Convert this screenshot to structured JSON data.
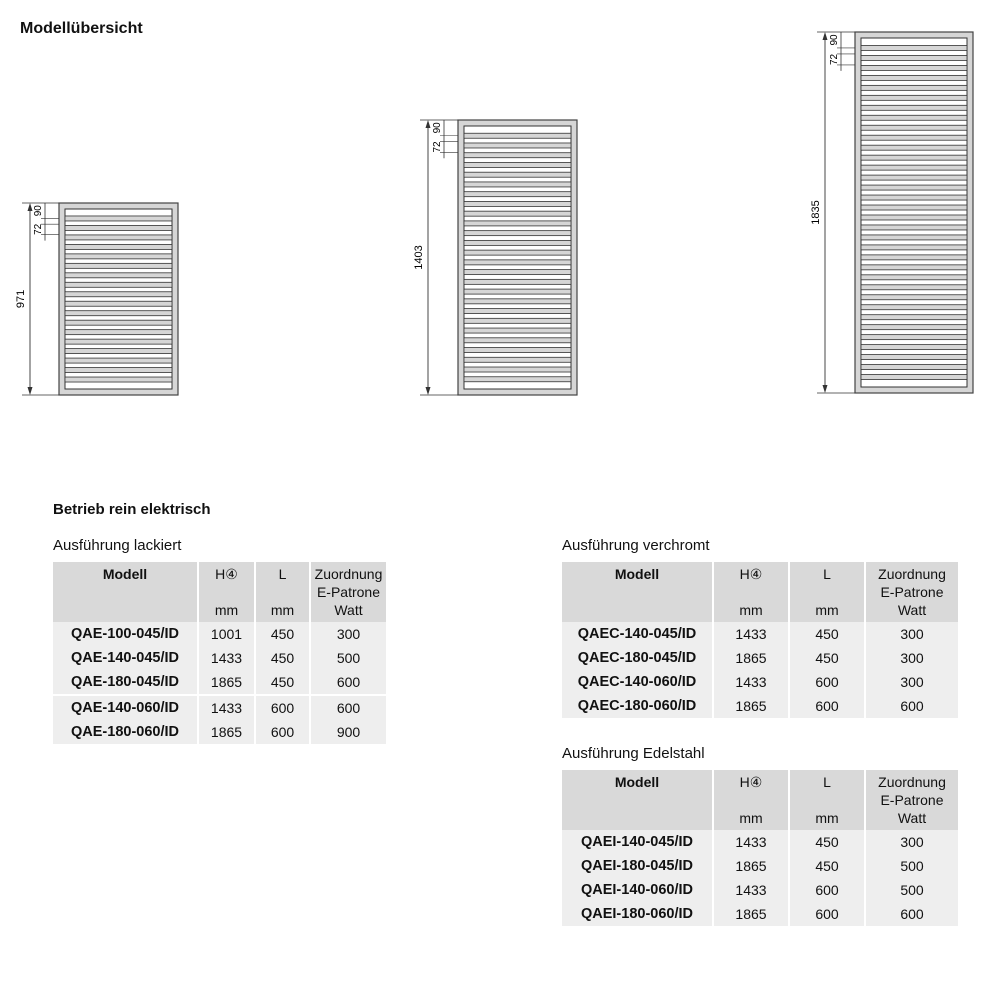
{
  "title": "Modellübersicht",
  "radiators": [
    {
      "height_label": "971",
      "top_label": "90",
      "pitch_label": "72",
      "bars": 19
    },
    {
      "height_label": "1403",
      "top_label": "90",
      "pitch_label": "72",
      "bars": 27
    },
    {
      "height_label": "1835",
      "top_label": "90",
      "pitch_label": "72",
      "bars": 35
    }
  ],
  "section": "Betrieb rein elektrisch",
  "headers": {
    "modell": "Modell",
    "h": "H④",
    "l": "L",
    "z1": "Zuordnung",
    "z2": "E-Patrone",
    "z3": "Watt",
    "mm": "mm"
  },
  "tables": [
    {
      "caption": "Ausführung lackiert",
      "rows": [
        [
          "QAE-100-045/ID",
          "1001",
          "450",
          "300"
        ],
        [
          "QAE-140-045/ID",
          "1433",
          "450",
          "500"
        ],
        [
          "QAE-180-045/ID",
          "1865",
          "450",
          "600"
        ],
        [
          "QAE-140-060/ID",
          "1433",
          "600",
          "600"
        ],
        [
          "QAE-180-060/ID",
          "1865",
          "600",
          "900"
        ]
      ]
    },
    {
      "caption": "Ausführung verchromt",
      "rows": [
        [
          "QAEC-140-045/ID",
          "1433",
          "450",
          "300"
        ],
        [
          "QAEC-180-045/ID",
          "1865",
          "450",
          "300"
        ],
        [
          "QAEC-140-060/ID",
          "1433",
          "600",
          "300"
        ],
        [
          "QAEC-180-060/ID",
          "1865",
          "600",
          "600"
        ]
      ]
    },
    {
      "caption": "Ausführung Edelstahl",
      "rows": [
        [
          "QAEI-140-045/ID",
          "1433",
          "450",
          "300"
        ],
        [
          "QAEI-180-045/ID",
          "1865",
          "450",
          "500"
        ],
        [
          "QAEI-140-060/ID",
          "1433",
          "600",
          "500"
        ],
        [
          "QAEI-180-060/ID",
          "1865",
          "600",
          "600"
        ]
      ]
    }
  ]
}
